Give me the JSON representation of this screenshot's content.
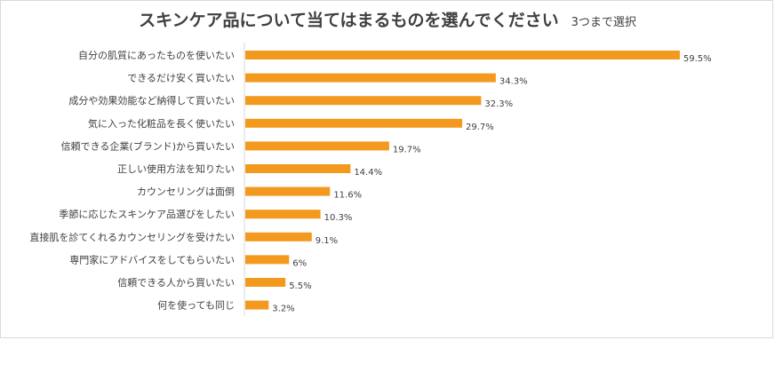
{
  "chart_data": {
    "type": "bar",
    "orientation": "horizontal",
    "title": "スキンケア品について当てはまるものを選んでください",
    "subtitle": "3つまで選択",
    "categories": [
      "自分の肌質にあったものを使いたい",
      "できるだけ安く買いたい",
      "成分や効果効能など納得して買いたい",
      "気に入った化粧品を長く使いたい",
      "信頼できる企業(ブランド)から買いたい",
      "正しい使用方法を知りたい",
      "カウンセリングは面倒",
      "季節に応じたスキンケア品選びをしたい",
      "直接肌を診てくれるカウンセリングを受けたい",
      "専門家にアドバイスをしてもらいたい",
      "信頼できる人から買いたい",
      "何を使っても同じ"
    ],
    "values": [
      59.5,
      34.3,
      32.3,
      29.7,
      19.7,
      14.4,
      11.6,
      10.3,
      9.1,
      6,
      5.5,
      3.2
    ],
    "value_labels": [
      "59.5%",
      "34.3%",
      "32.3%",
      "29.7%",
      "19.7%",
      "14.4%",
      "11.6%",
      "10.3%",
      "9.1%",
      "6%",
      "5.5%",
      "3.2%"
    ],
    "bar_color": "#f39a1e",
    "xlim": [
      0,
      60
    ],
    "grid": false,
    "legend": "none"
  }
}
